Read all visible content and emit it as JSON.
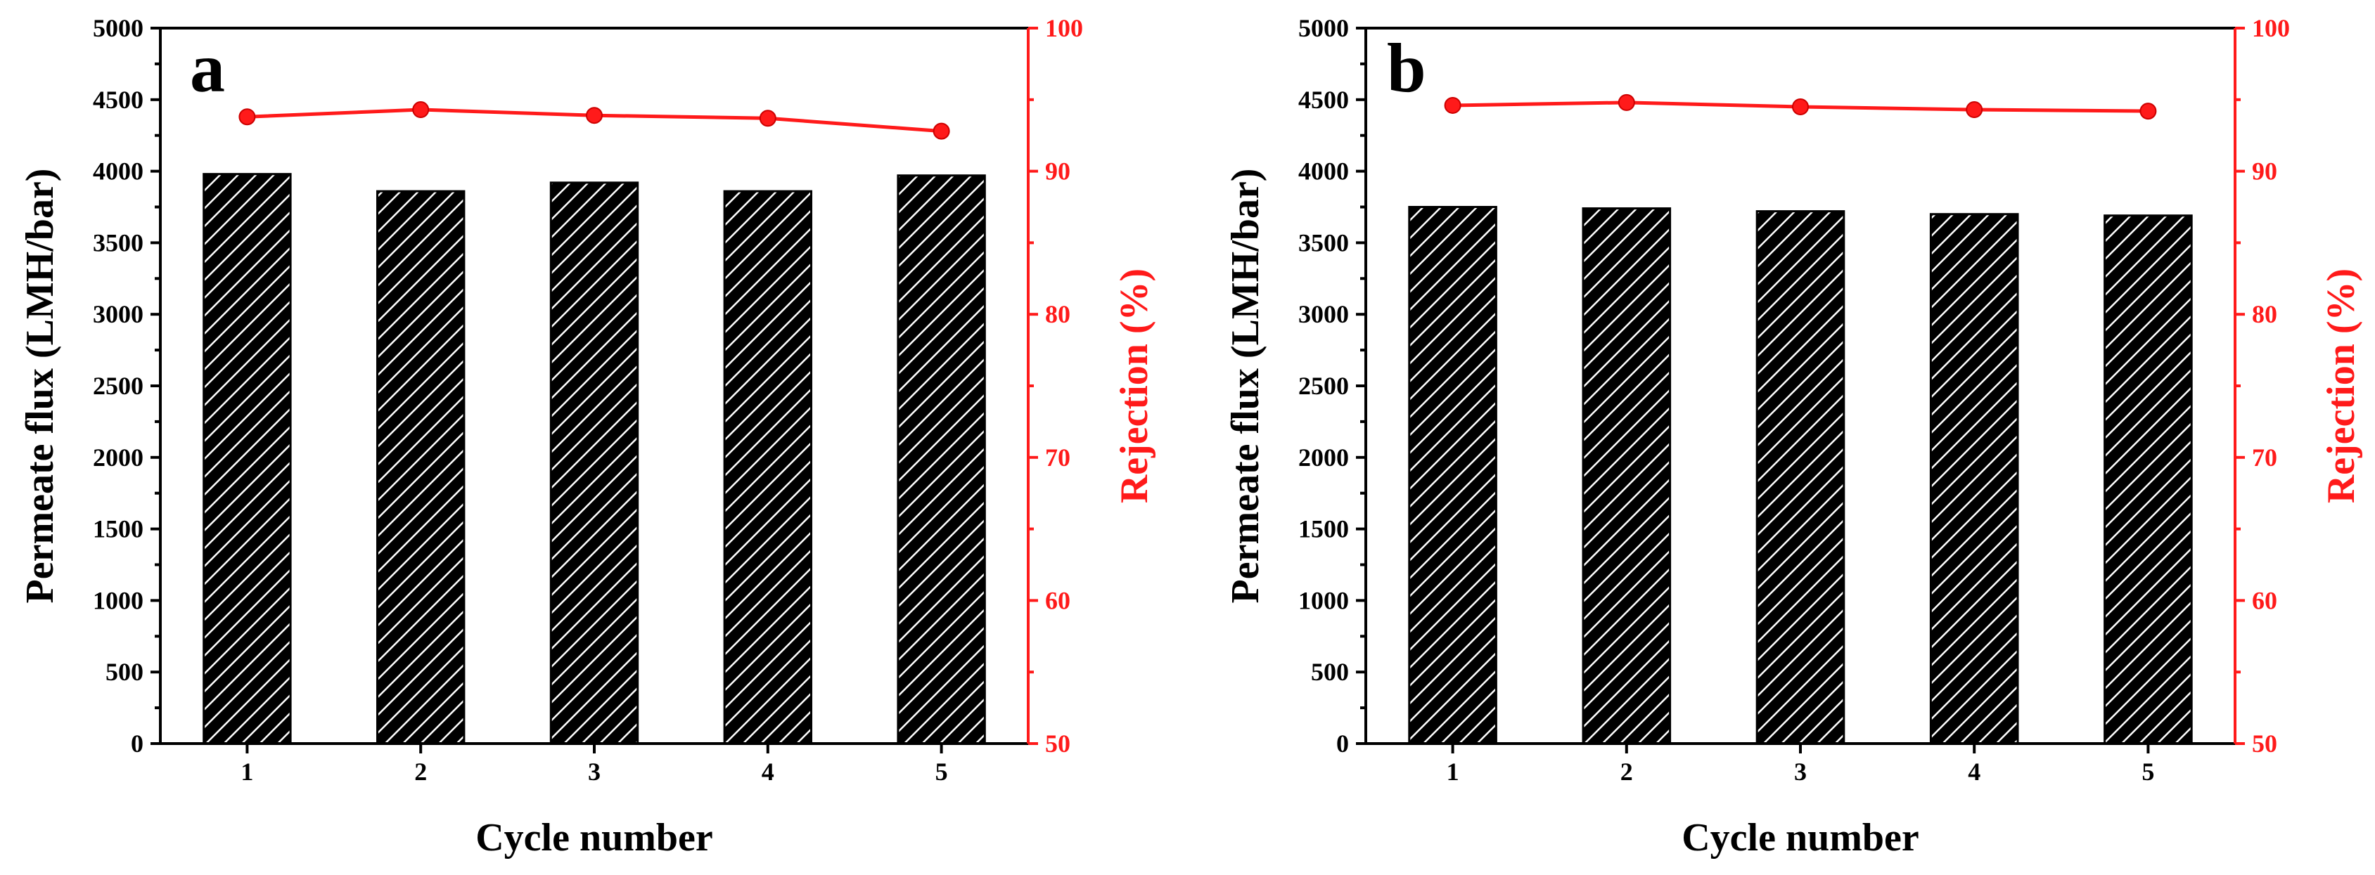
{
  "chart_data": [
    {
      "type": "bar",
      "panel_label": "a",
      "categories": [
        "1",
        "2",
        "3",
        "4",
        "5"
      ],
      "xlabel": "Cycle number",
      "ylabel": "Permeate flux (LMH/bar)",
      "y2label": "Rejection (%)",
      "ylim": [
        0,
        5000
      ],
      "y2lim": [
        50,
        100
      ],
      "yticks": [
        "0",
        "500",
        "1000",
        "1500",
        "2000",
        "2500",
        "3000",
        "3500",
        "4000",
        "4500",
        "5000"
      ],
      "y2ticks": [
        "50",
        "60",
        "70",
        "80",
        "90",
        "100"
      ],
      "series": [
        {
          "name": "Permeate flux",
          "axis": "left",
          "kind": "bar",
          "values": [
            3980,
            3860,
            3920,
            3860,
            3970
          ]
        },
        {
          "name": "Rejection",
          "axis": "right",
          "kind": "line",
          "values": [
            93.8,
            94.3,
            93.9,
            93.7,
            92.8
          ]
        }
      ]
    },
    {
      "type": "bar",
      "panel_label": "b",
      "categories": [
        "1",
        "2",
        "3",
        "4",
        "5"
      ],
      "xlabel": "Cycle number",
      "ylabel": "Permeate flux (LMH/bar)",
      "y2label": "Rejection (%)",
      "ylim": [
        0,
        5000
      ],
      "y2lim": [
        50,
        100
      ],
      "yticks": [
        "0",
        "500",
        "1000",
        "1500",
        "2000",
        "2500",
        "3000",
        "3500",
        "4000",
        "4500",
        "5000"
      ],
      "y2ticks": [
        "50",
        "60",
        "70",
        "80",
        "90",
        "100"
      ],
      "series": [
        {
          "name": "Permeate flux",
          "axis": "left",
          "kind": "bar",
          "values": [
            3750,
            3740,
            3720,
            3700,
            3690
          ]
        },
        {
          "name": "Rejection",
          "axis": "right",
          "kind": "line",
          "values": [
            94.6,
            94.8,
            94.5,
            94.3,
            94.2
          ]
        }
      ]
    }
  ]
}
